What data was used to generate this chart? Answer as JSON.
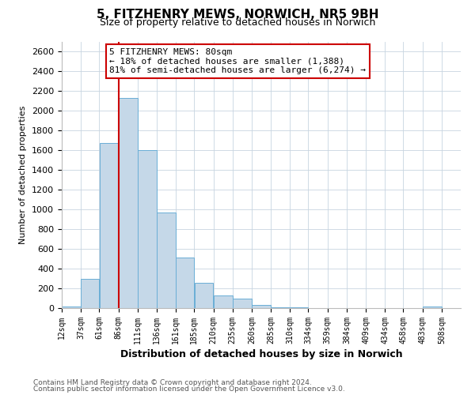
{
  "title": "5, FITZHENRY MEWS, NORWICH, NR5 9BH",
  "subtitle": "Size of property relative to detached houses in Norwich",
  "xlabel": "Distribution of detached houses by size in Norwich",
  "ylabel": "Number of detached properties",
  "bar_left_edges": [
    12,
    37,
    61,
    86,
    111,
    136,
    161,
    185,
    210,
    235,
    260,
    285,
    310,
    334,
    359,
    384,
    409,
    434,
    458,
    483
  ],
  "bar_widths": [
    25,
    24,
    25,
    25,
    25,
    25,
    24,
    25,
    25,
    25,
    25,
    25,
    24,
    25,
    25,
    25,
    25,
    24,
    25,
    25
  ],
  "bar_heights": [
    15,
    300,
    1670,
    2130,
    1600,
    970,
    510,
    255,
    125,
    100,
    35,
    10,
    5,
    3,
    3,
    3,
    2,
    2,
    2,
    18
  ],
  "bar_color": "#c5d8e8",
  "bar_edge_color": "#6aaed6",
  "tick_labels": [
    "12sqm",
    "37sqm",
    "61sqm",
    "86sqm",
    "111sqm",
    "136sqm",
    "161sqm",
    "185sqm",
    "210sqm",
    "235sqm",
    "260sqm",
    "285sqm",
    "310sqm",
    "334sqm",
    "359sqm",
    "384sqm",
    "409sqm",
    "434sqm",
    "458sqm",
    "483sqm",
    "508sqm"
  ],
  "xlim_min": 12,
  "xlim_max": 533,
  "ylim": [
    0,
    2700
  ],
  "yticks": [
    0,
    200,
    400,
    600,
    800,
    1000,
    1200,
    1400,
    1600,
    1800,
    2000,
    2200,
    2400,
    2600
  ],
  "vline_x": 86,
  "vline_color": "#cc0000",
  "annotation_title": "5 FITZHENRY MEWS: 80sqm",
  "annotation_line1": "← 18% of detached houses are smaller (1,388)",
  "annotation_line2": "81% of semi-detached houses are larger (6,274) →",
  "annotation_box_edgecolor": "#cc0000",
  "footer_line1": "Contains HM Land Registry data © Crown copyright and database right 2024.",
  "footer_line2": "Contains public sector information licensed under the Open Government Licence v3.0.",
  "background_color": "#ffffff",
  "grid_color": "#c8d4e0",
  "title_fontsize": 11,
  "subtitle_fontsize": 9,
  "ylabel_fontsize": 8,
  "xlabel_fontsize": 9,
  "tick_fontsize": 7,
  "ytick_fontsize": 8,
  "annotation_fontsize": 8,
  "footer_fontsize": 6.5
}
